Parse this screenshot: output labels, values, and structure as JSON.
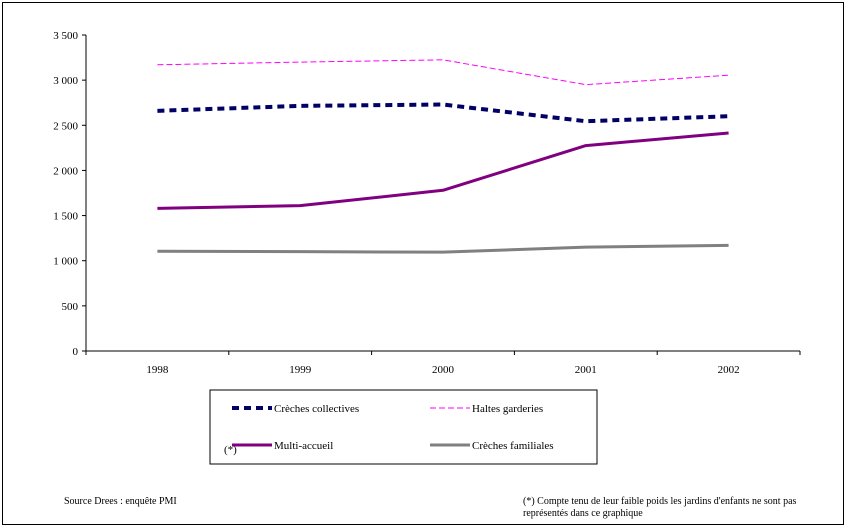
{
  "chart_data": {
    "type": "line",
    "title": "",
    "xlabel": "",
    "ylabel": "",
    "categories": [
      "1998",
      "1999",
      "2000",
      "2001",
      "2002"
    ],
    "ylim": [
      0,
      3500
    ],
    "ytick_values": [
      0,
      500,
      1000,
      1500,
      2000,
      2500,
      3000,
      3500
    ],
    "ytick_labels": [
      "0",
      "500",
      "1 000",
      "1 500",
      "2 000",
      "2 500",
      "3 000",
      "3 500"
    ],
    "grid": false,
    "legend_position": "bottom",
    "series": [
      {
        "name": "Crèches collectives",
        "values": [
          2660,
          2715,
          2730,
          2545,
          2600
        ],
        "color": "#000066",
        "style": "thick-dashed"
      },
      {
        "name": "Haltes garderies",
        "values": [
          3170,
          3200,
          3225,
          2950,
          3055
        ],
        "color": "#ff00ff",
        "style": "thin-dashed"
      },
      {
        "name": "Multi-accueil",
        "values": [
          1580,
          1610,
          1780,
          2275,
          2415
        ],
        "color": "#800080",
        "style": "solid-thick"
      },
      {
        "name": "Crèches familiales",
        "values": [
          1105,
          1100,
          1095,
          1150,
          1170
        ],
        "color": "#808080",
        "style": "solid"
      }
    ],
    "legend_marker": "(*)"
  },
  "notes": {
    "source": "Source Drees : enquête PMI",
    "footnote": "(*) Compte tenu de leur faible poids les jardins d'enfants ne sont pas représentés dans ce graphique"
  }
}
